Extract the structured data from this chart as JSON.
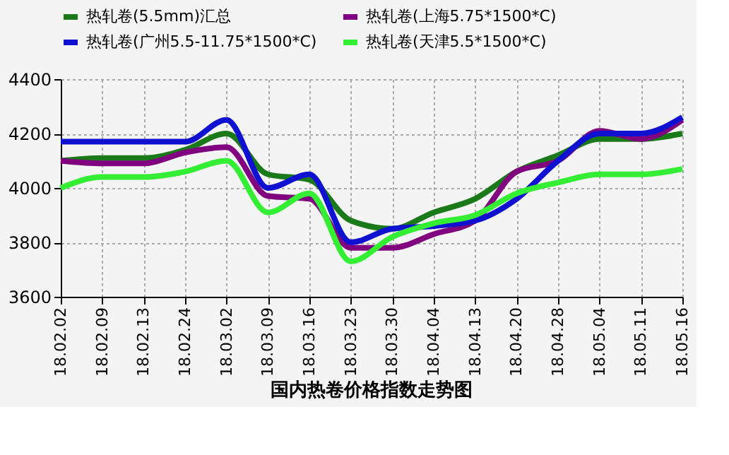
{
  "chart_data": {
    "type": "line",
    "title": "国内热卷价格指数走势图",
    "categories": [
      "18.02.02",
      "18.02.09",
      "18.02.13",
      "18.02.24",
      "18.03.02",
      "18.03.09",
      "18.03.16",
      "18.03.23",
      "18.03.30",
      "18.04.04",
      "18.04.13",
      "18.04.20",
      "18.04.28",
      "18.05.04",
      "18.05.11",
      "18.05.16"
    ],
    "series": [
      {
        "name": "热轧卷(5.5mm)汇总",
        "color": "#1a7a1a",
        "values": [
          4100,
          4110,
          4110,
          4140,
          4200,
          4050,
          4030,
          3880,
          3850,
          3910,
          3960,
          4060,
          4120,
          4180,
          4180,
          4200
        ]
      },
      {
        "name": "热轧卷(上海5.75*1500*C)",
        "color": "#800080",
        "values": [
          4100,
          4090,
          4090,
          4130,
          4150,
          3970,
          3960,
          3780,
          3780,
          3830,
          3880,
          4060,
          4100,
          4210,
          4180,
          4250
        ]
      },
      {
        "name": "热轧卷(广州5.5-11.75*1500*C)",
        "color": "#1010d0",
        "values": [
          4170,
          4170,
          4170,
          4170,
          4250,
          4000,
          4050,
          3800,
          3850,
          3860,
          3880,
          3960,
          4100,
          4200,
          4200,
          4260
        ]
      },
      {
        "name": "热轧卷(天津5.5*1500*C)",
        "color": "#33ee33",
        "values": [
          4000,
          4040,
          4040,
          4060,
          4100,
          3910,
          3980,
          3730,
          3820,
          3870,
          3900,
          3980,
          4020,
          4050,
          4050,
          4070
        ]
      }
    ],
    "ylim": [
      3600,
      4400
    ],
    "yticks": [
      3600,
      3800,
      4000,
      4200,
      4400
    ],
    "grid": true,
    "legend": "top",
    "marker": "none",
    "line_style": "solid"
  }
}
